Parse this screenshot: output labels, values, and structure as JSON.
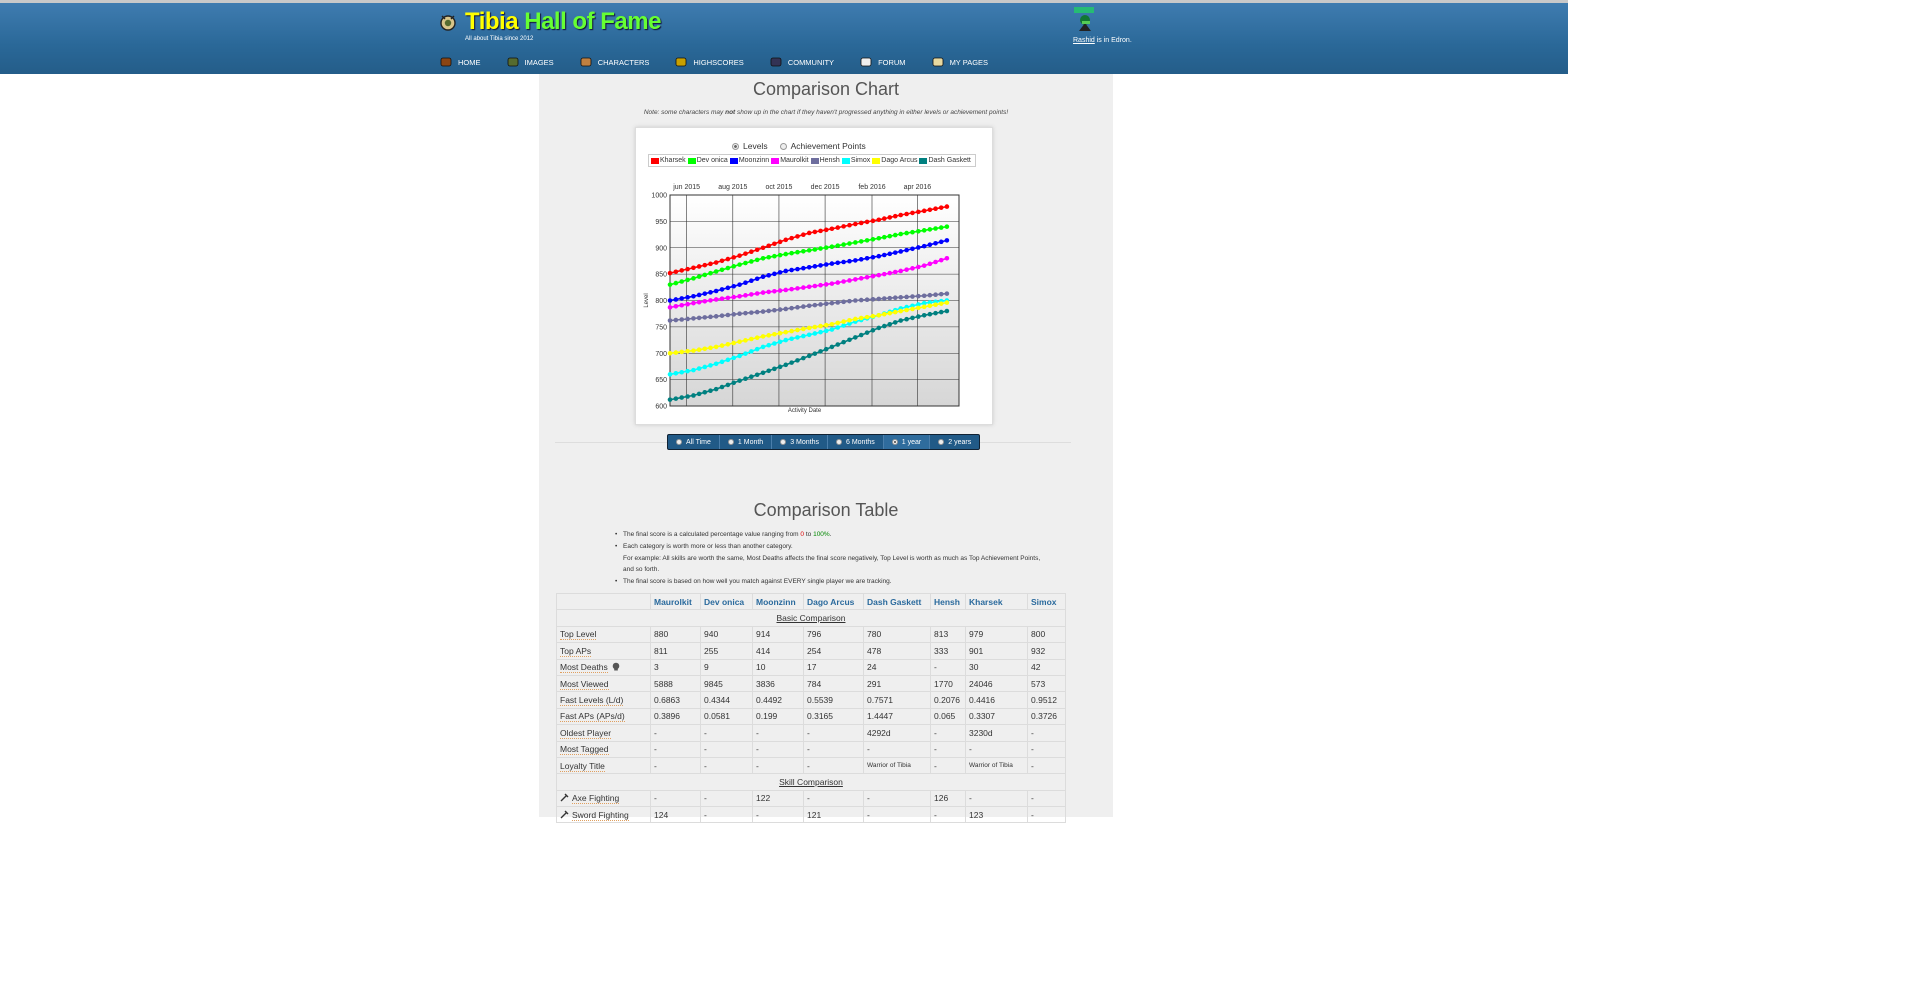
{
  "site": {
    "title_part1": "Tibia",
    "title_part2": "Hall of Fame",
    "tagline": "All about Tibia since 2012",
    "user": "Rashid",
    "user_status": " is in Edron."
  },
  "nav": [
    {
      "label": "HOME",
      "icon": "home-icon"
    },
    {
      "label": "IMAGES",
      "icon": "images-icon"
    },
    {
      "label": "CHARACTERS",
      "icon": "characters-icon"
    },
    {
      "label": "HIGHSCORES",
      "icon": "highscores-icon"
    },
    {
      "label": "COMMUNITY",
      "icon": "community-icon"
    },
    {
      "label": "FORUM",
      "icon": "forum-icon"
    },
    {
      "label": "MY PAGES",
      "icon": "my-pages-icon"
    }
  ],
  "chart_section": {
    "title": "Comparison Chart",
    "note_pre": "Note: some characters may ",
    "note_bold": "not",
    "note_post": " show up in the chart if they haven't progressed anything in either levels or achievement points!",
    "modes": [
      "Levels",
      "Achievement Points"
    ],
    "selected_mode": "Levels"
  },
  "ranges": [
    "All Time",
    "1 Month",
    "3 Months",
    "6 Months",
    "1 year",
    "2 years"
  ],
  "selected_range": "1 year",
  "chart_data": {
    "type": "line",
    "xlabel": "Activity Date",
    "ylabel": "Level",
    "ylim": [
      600,
      1000
    ],
    "yticks": [
      600,
      650,
      700,
      750,
      800,
      850,
      900,
      950,
      1000
    ],
    "xticks": [
      "jun 2015",
      "aug 2015",
      "oct 2015",
      "dec 2015",
      "feb 2016",
      "apr 2016"
    ],
    "x": [
      "2015-05-10",
      "2015-06-10",
      "2015-07-10",
      "2015-08-10",
      "2015-09-10",
      "2015-10-10",
      "2015-11-10",
      "2015-12-10",
      "2016-01-10",
      "2016-02-10",
      "2016-03-10",
      "2016-04-10",
      "2016-05-10"
    ],
    "grid": true,
    "legend_position": "top",
    "series": [
      {
        "name": "Kharsek",
        "color": "#ff0000",
        "values": [
          852,
          862,
          872,
          885,
          900,
          915,
          928,
          936,
          945,
          953,
          962,
          970,
          978
        ]
      },
      {
        "name": "Dev onica",
        "color": "#00ff00",
        "values": [
          830,
          842,
          855,
          868,
          880,
          888,
          895,
          902,
          910,
          918,
          926,
          933,
          940
        ]
      },
      {
        "name": "Moonzinn",
        "color": "#0000ff",
        "values": [
          800,
          808,
          818,
          830,
          845,
          856,
          863,
          870,
          876,
          884,
          893,
          903,
          914
        ]
      },
      {
        "name": "Maurolkit",
        "color": "#ff00ff",
        "values": [
          787,
          795,
          802,
          808,
          815,
          820,
          826,
          832,
          840,
          848,
          856,
          866,
          880
        ]
      },
      {
        "name": "Hensh",
        "color": "#6e6e9e",
        "values": [
          762,
          766,
          770,
          775,
          779,
          784,
          790,
          795,
          800,
          803,
          806,
          809,
          813
        ]
      },
      {
        "name": "Simox",
        "color": "#00ffff",
        "values": [
          660,
          668,
          680,
          695,
          712,
          725,
          735,
          745,
          760,
          772,
          785,
          795,
          800
        ]
      },
      {
        "name": "Dago Arcus",
        "color": "#ffff00",
        "values": [
          700,
          705,
          712,
          722,
          732,
          740,
          748,
          755,
          765,
          772,
          780,
          788,
          796
        ]
      },
      {
        "name": "Dash Gaskett",
        "color": "#008080",
        "values": [
          612,
          620,
          632,
          648,
          663,
          678,
          695,
          712,
          730,
          748,
          762,
          772,
          780
        ]
      }
    ]
  },
  "table_section": {
    "title": "Comparison Table",
    "bullets": [
      {
        "pre": "The final score is a calculated percentage value ranging from ",
        "red": "0",
        "mid": " to ",
        "green": "100%",
        "post": "."
      },
      {
        "text": "Each category is worth more or less than another category."
      },
      {
        "text": "For example: All skills are worth the same, Most Deaths affects the final score negatively, Top Level is worth as much as Top Achievement Points, and so forth.",
        "indent": true
      },
      {
        "text": "The final score is based on how well you match against EVERY single player we are tracking."
      }
    ],
    "columns": [
      "Maurolkit",
      "Dev onica",
      "Moonzinn",
      "Dago Arcus",
      "Dash Gaskett",
      "Hensh",
      "Kharsek",
      "Simox"
    ],
    "basic_title": "Basic Comparison",
    "basic_rows": [
      {
        "label": "Top Level",
        "values": [
          "880",
          "940",
          "914",
          "796",
          "780",
          "813",
          "979",
          "800"
        ]
      },
      {
        "label": "Top APs",
        "values": [
          "811",
          "255",
          "414",
          "254",
          "478",
          "333",
          "901",
          "932"
        ]
      },
      {
        "label": "Most Deaths",
        "values": [
          "3",
          "9",
          "10",
          "17",
          "24",
          "-",
          "30",
          "42"
        ],
        "icon": "skull-icon"
      },
      {
        "label": "Most Viewed",
        "values": [
          "5888",
          "9845",
          "3836",
          "784",
          "291",
          "1770",
          "24046",
          "573"
        ]
      },
      {
        "label": "Fast Levels (L/d)",
        "values": [
          "0.6863",
          "0.4344",
          "0.4492",
          "0.5539",
          "0.7571",
          "0.2076",
          "0.4416",
          "0.9512"
        ]
      },
      {
        "label": "Fast APs (APs/d)",
        "values": [
          "0.3896",
          "0.0581",
          "0.199",
          "0.3165",
          "1.4447",
          "0.065",
          "0.3307",
          "0.3726"
        ]
      },
      {
        "label": "Oldest Player",
        "values": [
          "-",
          "-",
          "-",
          "-",
          "4292d",
          "-",
          "3230d",
          "-"
        ]
      },
      {
        "label": "Most Tagged",
        "values": [
          "-",
          "-",
          "-",
          "-",
          "-",
          "-",
          "-",
          "-"
        ]
      },
      {
        "label": "Loyalty Title",
        "values": [
          "-",
          "-",
          "-",
          "-",
          "Warrior of Tibia",
          "-",
          "Warrior of Tibia",
          "-"
        ]
      }
    ],
    "skill_title": "Skill Comparison",
    "skill_rows": [
      {
        "label": "Axe Fighting",
        "icon": "axe-icon",
        "values": [
          "-",
          "-",
          "122",
          "-",
          "-",
          "126",
          "-",
          "-"
        ]
      },
      {
        "label": "Sword Fighting",
        "icon": "sword-icon",
        "values": [
          "124",
          "-",
          "-",
          "121",
          "-",
          "-",
          "123",
          "-"
        ]
      }
    ]
  }
}
